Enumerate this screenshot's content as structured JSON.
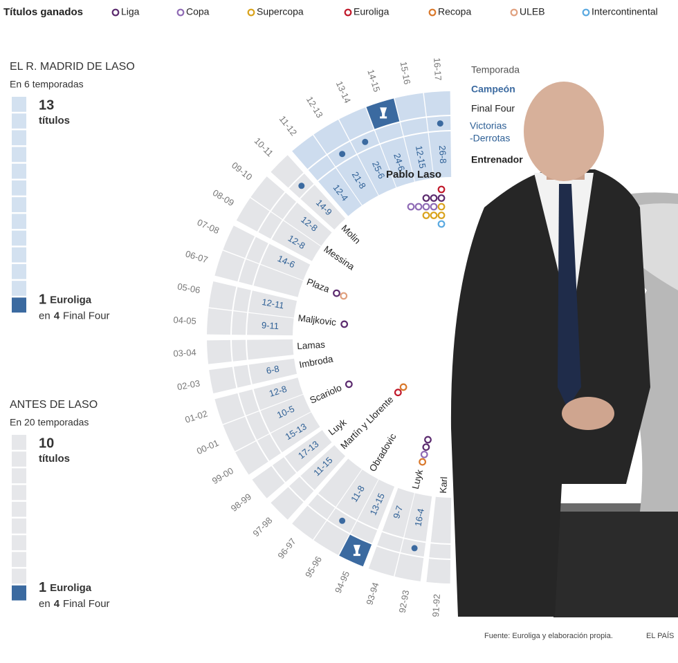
{
  "legend": {
    "title": "Títulos ganados",
    "items": [
      {
        "name": "Liga",
        "color": "#5b2a6e"
      },
      {
        "name": "Copa",
        "color": "#8f6bb5"
      },
      {
        "name": "Supercopa",
        "color": "#d9a21b"
      },
      {
        "name": "Euroliga",
        "color": "#c0182a"
      },
      {
        "name": "Recopa",
        "color": "#d9782b"
      },
      {
        "name": "ULEB",
        "color": "#e0a07e"
      },
      {
        "name": "Intercontinental",
        "color": "#5aa9e0"
      }
    ]
  },
  "panels": [
    {
      "title": "EL R. MADRID DE LASO",
      "subtitle": "En 6 temporadas",
      "titles": 13,
      "titles_label": "títulos",
      "euroligas": 1,
      "euroliga_label": "Euroliga",
      "ff_prefix": "en",
      "final_fours": 4,
      "ff_label": "Final Four",
      "color": "#d3e1f0"
    },
    {
      "title": "ANTES DE LASO",
      "subtitle": "En 20 temporadas",
      "titles": 10,
      "titles_label": "títulos",
      "euroligas": 1,
      "euroliga_label": "Euroliga",
      "ff_prefix": "en",
      "final_fours": 4,
      "ff_label": "Final Four",
      "color": "#e6e7ea"
    }
  ],
  "wheel": {
    "headers": {
      "season": "Temporada",
      "champion": "Campeón",
      "final_four": "Final Four",
      "record": [
        "Victorias",
        "-Derrotas"
      ],
      "coach": "Entrenador"
    },
    "eras": [
      {
        "coach": "Pablo Laso",
        "color": "#cddcee",
        "trophies": [
          "Euroliga",
          "Liga",
          "Liga",
          "Liga",
          "Copa",
          "Copa",
          "Copa",
          "Copa",
          "Supercopa",
          "Supercopa",
          "Supercopa",
          "Supercopa",
          "Intercontinental"
        ],
        "seasons": [
          {
            "label": "16-17",
            "record": "26-8",
            "final_four": true,
            "champion": false
          },
          {
            "label": "15-16",
            "record": "12-15",
            "final_four": false,
            "champion": false
          },
          {
            "label": "14-15",
            "record": "24-6",
            "final_four": true,
            "champion": true
          },
          {
            "label": "13-14",
            "record": "25-6",
            "final_four": true,
            "champion": false
          },
          {
            "label": "12-13",
            "record": "21-8",
            "final_four": true,
            "champion": false
          },
          {
            "label": "11-12",
            "record": "12-4",
            "final_four": false,
            "champion": false
          }
        ]
      },
      {
        "coach": "Molin",
        "color": "#e4e5e8",
        "trophies": [],
        "seasons": [
          {
            "label": "10-11",
            "record": "14-9",
            "final_four": true,
            "champion": false
          }
        ]
      },
      {
        "coach": "Messina",
        "color": "#e4e5e8",
        "trophies": [],
        "seasons": [
          {
            "label": "09-10",
            "record": "12-8",
            "final_four": false,
            "champion": false
          },
          {
            "label": "08-09",
            "record": "12-8",
            "final_four": false,
            "champion": false
          }
        ]
      },
      {
        "coach": "Plaza",
        "color": "#e4e5e8",
        "trophies": [
          "Liga",
          "ULEB"
        ],
        "seasons": [
          {
            "label": "07-08",
            "record": "14-6",
            "final_four": false,
            "champion": false
          },
          {
            "label": "06-07",
            "record": null,
            "final_four": false,
            "champion": false
          }
        ]
      },
      {
        "coach": "Maljkovic",
        "color": "#e4e5e8",
        "trophies": [
          "Liga"
        ],
        "seasons": [
          {
            "label": "05-06",
            "record": "12-11",
            "final_four": false,
            "champion": false
          },
          {
            "label": "04-05",
            "record": "9-11",
            "final_four": false,
            "champion": false
          }
        ]
      },
      {
        "coach": "Lamas",
        "color": "#e4e5e8",
        "trophies": [],
        "seasons": [
          {
            "label": "03-04",
            "record": null,
            "final_four": false,
            "champion": false
          }
        ]
      },
      {
        "coach": "Imbroda",
        "color": "#e4e5e8",
        "trophies": [],
        "seasons": [
          {
            "label": "02-03",
            "record": "6-8",
            "final_four": false,
            "champion": false
          }
        ]
      },
      {
        "coach": "Scariolo",
        "color": "#e4e5e8",
        "trophies": [
          "Liga"
        ],
        "seasons": [
          {
            "label": "01-02",
            "record": "12-8",
            "final_four": false,
            "champion": false
          },
          {
            "label": "00-01",
            "record": "10-5",
            "final_four": false,
            "champion": false
          },
          {
            "label": "99-00",
            "record": "15-13",
            "final_four": false,
            "champion": false
          }
        ]
      },
      {
        "coach": "Luyk",
        "color": "#e4e5e8",
        "trophies": [],
        "seasons": [
          {
            "label": "98-99",
            "record": "17-13",
            "final_four": false,
            "champion": false
          }
        ]
      },
      {
        "coach": "Martín y Llorente",
        "color": "#e4e5e8",
        "trophies": [
          "Euroliga",
          "Recopa"
        ],
        "seasons": [
          {
            "label": "97-98",
            "record": "11-15",
            "final_four": false,
            "champion": false
          }
        ]
      },
      {
        "coach": "Obradovic",
        "color": "#e4e5e8",
        "trophies": [],
        "seasons": [
          {
            "label": "96-97",
            "record": null,
            "final_four": false,
            "champion": false
          },
          {
            "label": "95-96",
            "record": "11-8",
            "final_four": true,
            "champion": false
          },
          {
            "label": "94-95",
            "record": "13-15",
            "final_four": true,
            "champion": true
          }
        ]
      },
      {
        "coach": "Luyk",
        "color": "#e4e5e8",
        "trophies": [
          "Recopa",
          "Copa",
          "Liga",
          "Liga"
        ],
        "seasons": [
          {
            "label": "93-94",
            "record": "9-7",
            "final_four": false,
            "champion": false
          },
          {
            "label": "92-93",
            "record": "16-4",
            "final_four": true,
            "champion": false
          }
        ]
      },
      {
        "coach": "Karl",
        "color": "#e4e5e8",
        "trophies": [],
        "seasons": [
          {
            "label": "91-92",
            "record": null,
            "final_four": false,
            "champion": false
          }
        ]
      }
    ]
  },
  "footer": {
    "source": "Fuente: Euroliga y elaboración propia.",
    "brand": "EL PAÍS"
  }
}
